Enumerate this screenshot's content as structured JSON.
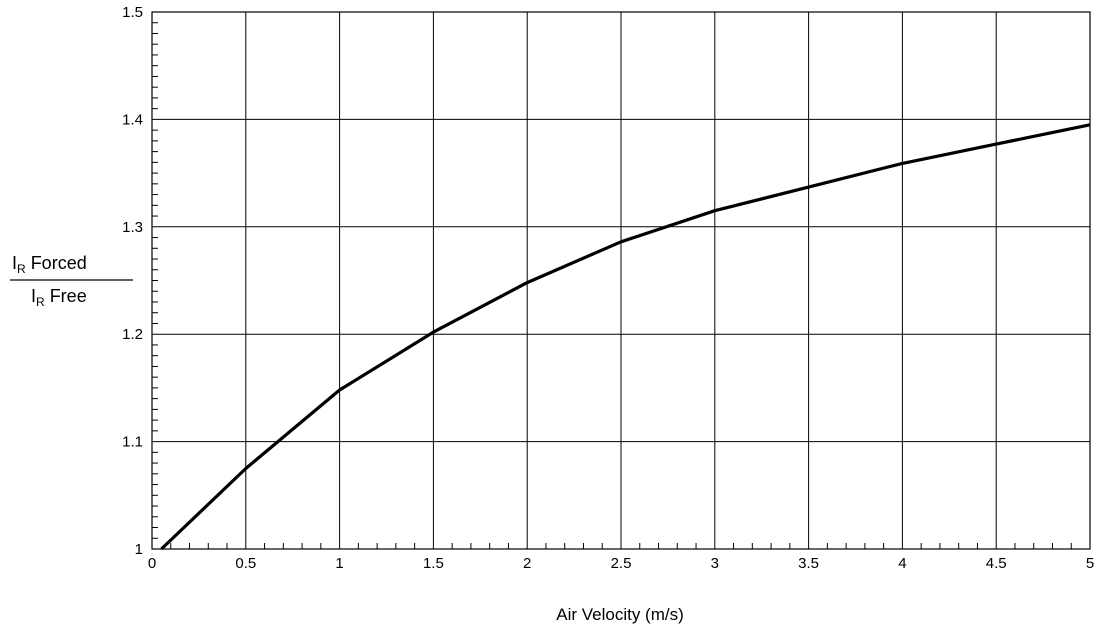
{
  "chart_data": {
    "type": "line",
    "title": "",
    "xlabel": "Air Velocity (m/s)",
    "ylabel": {
      "numerator": {
        "main": "I",
        "sub": "R",
        "rest": " Forced"
      },
      "denominator": {
        "main": "I",
        "sub": "R",
        "rest": " Free"
      }
    },
    "xlim": [
      0,
      5
    ],
    "ylim": [
      1.0,
      1.5
    ],
    "x_ticks": [
      0,
      0.5,
      1,
      1.5,
      2,
      2.5,
      3,
      3.5,
      4,
      4.5,
      5
    ],
    "x_tick_labels": [
      "0",
      "0.5",
      "1",
      "1.5",
      "2",
      "2.5",
      "3",
      "3.5",
      "4",
      "4.5",
      "5"
    ],
    "y_ticks": [
      1.0,
      1.1,
      1.2,
      1.3,
      1.4,
      1.5
    ],
    "y_tick_labels": [
      "1",
      "1.1",
      "1.2",
      "1.3",
      "1.4",
      "1.5"
    ],
    "grid": true,
    "line_color": "#000000",
    "series": [
      {
        "x": [
          0.05,
          0.5,
          1.0,
          1.5,
          2.0,
          2.5,
          3.0,
          3.5,
          4.0,
          4.5,
          5.0
        ],
        "y": [
          1.0,
          1.075,
          1.148,
          1.202,
          1.248,
          1.286,
          1.315,
          1.337,
          1.359,
          1.377,
          1.395
        ]
      }
    ]
  }
}
